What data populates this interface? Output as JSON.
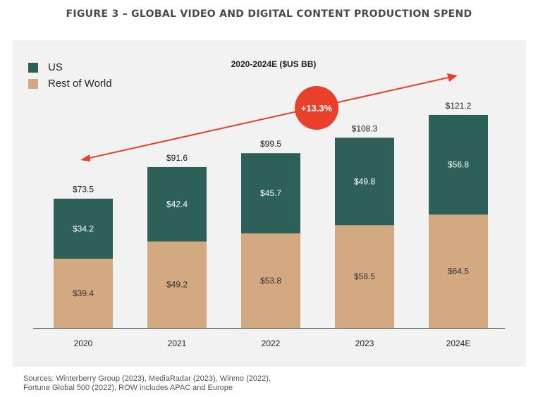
{
  "figure_title": "FIGURE 3 – GLOBAL VIDEO AND DIGITAL CONTENT PRODUCTION SPEND",
  "sources": [
    "Sources: Winterberry Group (2023), MediaRadar (2023), Winmo (2022),",
    "Fortune Global 500 (2022), ROW includes APAC and Europe"
  ],
  "colors": {
    "us": "#2c6058",
    "rest_of_world": "#d3a982",
    "growth": "#e8402a",
    "panel": "#f2f2f2"
  },
  "chart_data": {
    "type": "bar",
    "stacked": true,
    "title": "2020-2024E ($US BB)",
    "categories": [
      "2020",
      "2021",
      "2022",
      "2023",
      "2024E"
    ],
    "series": [
      {
        "name": "Rest of World",
        "values": [
          39.4,
          49.2,
          53.8,
          58.5,
          64.5
        ],
        "labels": [
          "$39.4",
          "$49.2",
          "$53.8",
          "$58.5",
          "$64.5"
        ]
      },
      {
        "name": "US",
        "values": [
          34.2,
          42.4,
          45.7,
          49.8,
          56.8
        ],
        "labels": [
          "$34.2",
          "$42.4",
          "$45.7",
          "$49.8",
          "$56.8"
        ]
      }
    ],
    "totals": [
      73.5,
      91.6,
      99.5,
      108.3,
      121.2
    ],
    "total_labels": [
      "$73.5",
      "$91.6",
      "$99.5",
      "$108.3",
      "$121.2"
    ],
    "legend": [
      "US",
      "Rest of World"
    ],
    "legend_position": "top-left",
    "annotation": "+13.3%",
    "ylim": [
      0,
      140
    ],
    "grid": false
  }
}
